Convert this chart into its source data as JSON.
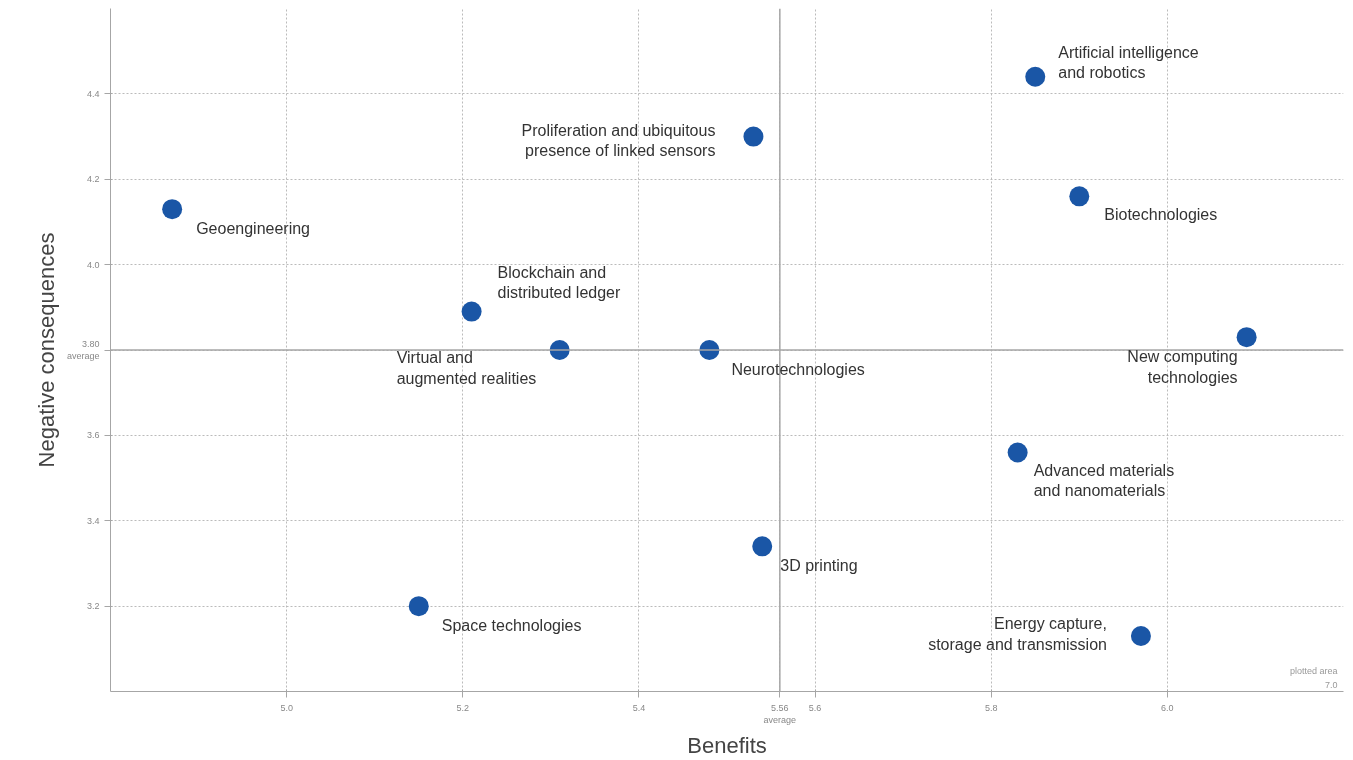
{
  "chart_data": {
    "type": "scatter",
    "xlabel": "Benefits",
    "ylabel": "Negative consequences",
    "xlim": [
      4.8,
      6.2
    ],
    "ylim": [
      3.0,
      4.6
    ],
    "xticks": [
      {
        "value": 5.0,
        "label": "5.0"
      },
      5.2,
      5.4,
      5.6,
      5.8,
      {
        "value": 6.0,
        "label": "6.0"
      }
    ],
    "yticks": [
      3.2,
      3.4,
      3.6,
      {
        "value": 4.0,
        "label": "4.0"
      },
      4.2,
      4.4
    ],
    "grid": true,
    "marker": "circle",
    "series": [
      {
        "color": "#1a56a6",
        "x": [
          5.85,
          5.53,
          4.87,
          5.9,
          5.21,
          5.31,
          5.48,
          6.09,
          5.83,
          5.54,
          5.15,
          5.97
        ],
        "values": [
          4.44,
          4.3,
          4.13,
          4.16,
          3.89,
          3.8,
          3.8,
          3.83,
          3.56,
          3.34,
          3.2,
          3.13
        ]
      }
    ],
    "ref_lines": [
      {
        "axis": "y",
        "value": 3.8,
        "label": "3.80\naverage",
        "color": "#a6a6a6"
      },
      {
        "axis": "x",
        "value": 5.56,
        "label": "5.56\naverage",
        "color": "#a6a6a6"
      }
    ],
    "annotations": [
      {
        "text": "Artificial intelligence\nand robotics",
        "x": 5.85,
        "y": 4.44
      },
      {
        "text": "Proliferation and ubiquitous\npresence of linked sensors",
        "x": 5.53,
        "y": 4.3
      },
      {
        "text": "Geoengineering",
        "x": 4.87,
        "y": 4.13
      },
      {
        "text": "Biotechnologies",
        "x": 5.9,
        "y": 4.16
      },
      {
        "text": "Blockchain and\ndistributed ledger",
        "x": 5.21,
        "y": 3.89
      },
      {
        "text": "Virtual and\naugmented realities",
        "x": 5.31,
        "y": 3.8
      },
      {
        "text": "Neurotechnologies",
        "x": 5.48,
        "y": 3.8
      },
      {
        "text": "New computing\ntechnologies",
        "x": 6.09,
        "y": 3.83
      },
      {
        "text": "Advanced materials\nand nanomaterials",
        "x": 5.83,
        "y": 3.56
      },
      {
        "text": "3D printing",
        "x": 5.54,
        "y": 3.34
      },
      {
        "text": "Space technologies",
        "x": 5.15,
        "y": 3.2
      },
      {
        "text": "Energy capture,\nstorage and transmission",
        "x": 5.97,
        "y": 3.13
      },
      "plotted area",
      "7.0"
    ]
  }
}
